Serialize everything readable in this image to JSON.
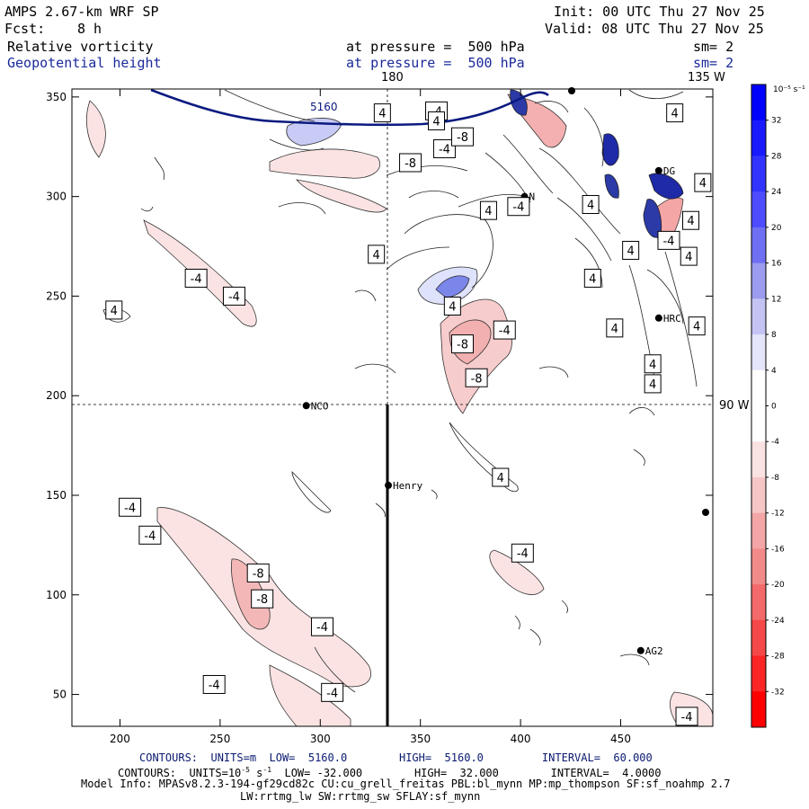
{
  "header": {
    "model": "AMPS 2.67-km WRF SP",
    "init": "Init: 00 UTC Thu 27 Nov 25",
    "fcst_label": "Fcst:",
    "fcst_value": "8 h",
    "valid": "Valid: 08 UTC Thu 27 Nov 25",
    "field1": "Relative vorticity",
    "field1_level": "at pressure =  500 hPa",
    "field1_sm": "sm= 2",
    "field2": "Geopotential height",
    "field2_level": "at pressure =  500 hPa",
    "field2_sm": "sm= 2"
  },
  "map": {
    "x_ticks": [
      "200",
      "250",
      "300",
      "350",
      "400",
      "450"
    ],
    "y_ticks": [
      "350",
      "300",
      "250",
      "200",
      "150",
      "100",
      "50"
    ],
    "xlim": [
      176,
      496
    ],
    "ylim": [
      34,
      354
    ],
    "grid_lines": {
      "lon_vertical_label": "180",
      "lon_corner_label": "135 W",
      "lat_horizontal_label": "90 W"
    },
    "stations": [
      {
        "name": "NCO",
        "x": 293,
        "y": 195
      },
      {
        "name": "Henry",
        "x": 334,
        "y": 155
      },
      {
        "name": "HRC",
        "x": 469,
        "y": 239
      },
      {
        "name": "AG2",
        "x": 460,
        "y": 72
      },
      {
        "name": "DG",
        "x": 469,
        "y": 313
      },
      {
        "name": "N",
        "x": 402,
        "y": 300
      }
    ],
    "height_contour_label": "5160",
    "vorticity_labels": [
      {
        "text": "-4",
        "x": 358,
        "y": 343
      },
      {
        "text": "-4",
        "x": 362,
        "y": 324
      },
      {
        "text": "-8",
        "x": 345,
        "y": 317
      },
      {
        "text": "-8",
        "x": 371,
        "y": 330
      },
      {
        "text": "4",
        "x": 358,
        "y": 338
      },
      {
        "text": "4",
        "x": 331,
        "y": 342
      },
      {
        "text": "4",
        "x": 384,
        "y": 293
      },
      {
        "text": "4",
        "x": 328,
        "y": 271
      },
      {
        "text": "-4",
        "x": 238,
        "y": 259
      },
      {
        "text": "-4",
        "x": 257,
        "y": 250
      },
      {
        "text": "4",
        "x": 197,
        "y": 243
      },
      {
        "text": "4",
        "x": 435,
        "y": 296
      },
      {
        "text": "4",
        "x": 477,
        "y": 342
      },
      {
        "text": "4",
        "x": 491,
        "y": 307
      },
      {
        "text": "4",
        "x": 485,
        "y": 288
      },
      {
        "text": "4",
        "x": 484,
        "y": 270
      },
      {
        "text": "-4",
        "x": 474,
        "y": 278
      },
      {
        "text": "-4",
        "x": 399,
        "y": 295
      },
      {
        "text": "4",
        "x": 455,
        "y": 273
      },
      {
        "text": "4",
        "x": 436,
        "y": 259
      },
      {
        "text": "4",
        "x": 366,
        "y": 245
      },
      {
        "text": "4",
        "x": 447,
        "y": 234
      },
      {
        "text": "-4",
        "x": 392,
        "y": 233
      },
      {
        "text": "-8",
        "x": 371,
        "y": 226
      },
      {
        "text": "4",
        "x": 488,
        "y": 235
      },
      {
        "text": "4",
        "x": 466,
        "y": 216
      },
      {
        "text": "4",
        "x": 466,
        "y": 206
      },
      {
        "text": "-8",
        "x": 378,
        "y": 209
      },
      {
        "text": "4",
        "x": 390,
        "y": 159
      },
      {
        "text": "-4",
        "x": 205,
        "y": 144
      },
      {
        "text": "-4",
        "x": 215,
        "y": 130
      },
      {
        "text": "-8",
        "x": 269,
        "y": 111
      },
      {
        "text": "-8",
        "x": 271,
        "y": 98
      },
      {
        "text": "-4",
        "x": 401,
        "y": 121
      },
      {
        "text": "-4",
        "x": 301,
        "y": 84
      },
      {
        "text": "-4",
        "x": 247,
        "y": 55
      },
      {
        "text": "-4",
        "x": 306,
        "y": 51
      },
      {
        "text": "-4",
        "x": 483,
        "y": 39
      }
    ]
  },
  "colorbar": {
    "unit": "10⁻⁵ s⁻¹",
    "labels": [
      "32",
      "28",
      "24",
      "20",
      "16",
      "12",
      "8",
      "4",
      "0",
      "-4",
      "-8",
      "-12",
      "-16",
      "-20",
      "-24",
      "-28",
      "-32"
    ],
    "colors": [
      "#0000ff",
      "#1a1aff",
      "#3333ff",
      "#4d4dff",
      "#6f6ff4",
      "#9b9bf0",
      "#c4c4f4",
      "#e4e4fa",
      "#ffffff",
      "#ffffff",
      "#fbe2e2",
      "#f6c6c6",
      "#f4a6a6",
      "#f28a8a",
      "#f46a6a",
      "#f54848",
      "#fa2626",
      "#ff0000"
    ]
  },
  "footer": {
    "line1": "CONTOURS:  UNITS=m  LOW=  5160.0        HIGH=  5160.0         INTERVAL=  60.000",
    "line2_pre": "CONTOURS:  UNITS=10",
    "line2_sup1": "-5",
    "line2_mid": " s",
    "line2_sup2": "-1",
    "line2_post": "  LOW= -32.000        HIGH=  32.000        INTERVAL=  4.0000",
    "line3": "Model Info: MPASv8.2.3-194-gf29cd82c CU:cu_grell_freitas PBL:bl_mynn MP:mp_thompson SF:sf_noahmp 2.7",
    "line4": "LW:rrtmg_lw SW:rrtmg_sw SFLAY:sf_mynn"
  }
}
